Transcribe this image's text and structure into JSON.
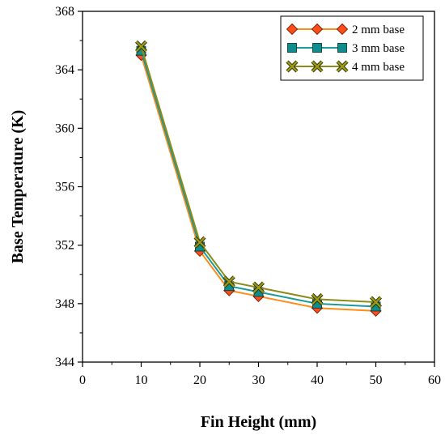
{
  "chart_data": {
    "type": "line",
    "title": "",
    "xlabel": "Fin Height (mm)",
    "ylabel": "Base Temperature (K)",
    "xlim": [
      0,
      60
    ],
    "ylim": [
      344,
      368
    ],
    "xticks": [
      0,
      10,
      20,
      30,
      40,
      50,
      60
    ],
    "yticks": [
      344,
      348,
      352,
      356,
      360,
      364,
      368
    ],
    "grid": false,
    "legend_position": "top-right",
    "x": [
      10,
      20,
      25,
      30,
      40,
      50
    ],
    "series": [
      {
        "name": "2 mm base",
        "marker": "diamond",
        "line_color": "#ff8c1a",
        "marker_color": "#ff4d1a",
        "values": [
          365.0,
          351.6,
          348.9,
          348.5,
          347.7,
          347.5
        ]
      },
      {
        "name": "3 mm base",
        "marker": "square",
        "line_color": "#1a9a9a",
        "marker_color": "#0f8c8c",
        "values": [
          365.3,
          351.9,
          349.2,
          348.8,
          348.0,
          347.8
        ]
      },
      {
        "name": "4 mm base",
        "marker": "cross",
        "line_color": "#8c8c1a",
        "marker_color": "#9a9a1a",
        "values": [
          365.6,
          352.2,
          349.5,
          349.1,
          348.3,
          348.1
        ]
      }
    ]
  }
}
